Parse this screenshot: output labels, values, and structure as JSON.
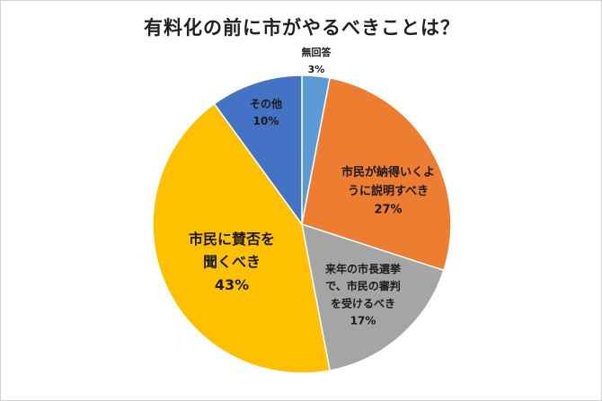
{
  "chart_data": {
    "type": "pie",
    "title": "有料化の前に市がやるべきことは？",
    "slices": [
      {
        "label_lines": [
          "無回答"
        ],
        "value": 3,
        "value_label": "3%",
        "color": "#5b9bd5"
      },
      {
        "label_lines": [
          "市民が納得いくよ",
          "うに説明すべき"
        ],
        "value": 27,
        "value_label": "27%",
        "color": "#ed7d31"
      },
      {
        "label_lines": [
          "来年の市長選挙",
          "で、市民の審判",
          "を受けるべき"
        ],
        "value": 17,
        "value_label": "17%",
        "color": "#a5a5a5"
      },
      {
        "label_lines": [
          "市民に賛否を",
          "聞くべき"
        ],
        "value": 43,
        "value_label": "43%",
        "color": "#ffc000"
      },
      {
        "label_lines": [
          "その他"
        ],
        "value": 10,
        "value_label": "10%",
        "color": "#4472c4"
      }
    ],
    "legend": "none"
  }
}
